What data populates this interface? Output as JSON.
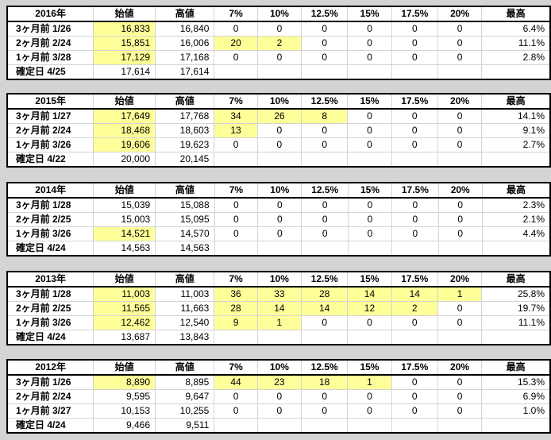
{
  "headers": [
    "始値",
    "高値",
    "7%",
    "10%",
    "12.5%",
    "15%",
    "17.5%",
    "20%",
    "最高"
  ],
  "highlight_color": "#ffff99",
  "blocks": [
    {
      "year": "2016年",
      "rows": [
        {
          "label": "3ヶ月前 1/26",
          "open": "16,833",
          "high": "16,840",
          "p": [
            "0",
            "0",
            "0",
            "0",
            "0",
            "0"
          ],
          "max": "6.4%",
          "hl": [
            1,
            0,
            0,
            0,
            0,
            0,
            0,
            0
          ]
        },
        {
          "label": "2ヶ月前 2/24",
          "open": "15,851",
          "high": "16,006",
          "p": [
            "20",
            "2",
            "0",
            "0",
            "0",
            "0"
          ],
          "max": "11.1%",
          "hl": [
            1,
            0,
            1,
            1,
            0,
            0,
            0,
            0
          ]
        },
        {
          "label": "1ヶ月前 3/28",
          "open": "17,129",
          "high": "17,168",
          "p": [
            "0",
            "0",
            "0",
            "0",
            "0",
            "0"
          ],
          "max": "2.8%",
          "hl": [
            1,
            0,
            0,
            0,
            0,
            0,
            0,
            0
          ]
        },
        {
          "label": "確定日 4/25",
          "open": "17,614",
          "high": "17,614",
          "p": [
            "",
            "",
            "",
            "",
            "",
            ""
          ],
          "max": "",
          "hl": [
            0,
            0,
            0,
            0,
            0,
            0,
            0,
            0
          ]
        }
      ]
    },
    {
      "year": "2015年",
      "rows": [
        {
          "label": "3ヶ月前 1/27",
          "open": "17,649",
          "high": "17,768",
          "p": [
            "34",
            "26",
            "8",
            "0",
            "0",
            "0"
          ],
          "max": "14.1%",
          "hl": [
            1,
            0,
            1,
            1,
            1,
            0,
            0,
            0
          ]
        },
        {
          "label": "2ヶ月前 2/24",
          "open": "18,468",
          "high": "18,603",
          "p": [
            "13",
            "0",
            "0",
            "0",
            "0",
            "0"
          ],
          "max": "9.1%",
          "hl": [
            1,
            0,
            1,
            0,
            0,
            0,
            0,
            0
          ]
        },
        {
          "label": "1ヶ月前 3/26",
          "open": "19,606",
          "high": "19,623",
          "p": [
            "0",
            "0",
            "0",
            "0",
            "0",
            "0"
          ],
          "max": "2.7%",
          "hl": [
            1,
            0,
            0,
            0,
            0,
            0,
            0,
            0
          ]
        },
        {
          "label": "確定日 4/22",
          "open": "20,000",
          "high": "20,145",
          "p": [
            "",
            "",
            "",
            "",
            "",
            ""
          ],
          "max": "",
          "hl": [
            0,
            0,
            0,
            0,
            0,
            0,
            0,
            0
          ]
        }
      ]
    },
    {
      "year": "2014年",
      "rows": [
        {
          "label": "3ヶ月前 1/28",
          "open": "15,039",
          "high": "15,088",
          "p": [
            "0",
            "0",
            "0",
            "0",
            "0",
            "0"
          ],
          "max": "2.3%",
          "hl": [
            0,
            0,
            0,
            0,
            0,
            0,
            0,
            0
          ]
        },
        {
          "label": "2ヶ月前 2/25",
          "open": "15,003",
          "high": "15,095",
          "p": [
            "0",
            "0",
            "0",
            "0",
            "0",
            "0"
          ],
          "max": "2.1%",
          "hl": [
            0,
            0,
            0,
            0,
            0,
            0,
            0,
            0
          ]
        },
        {
          "label": "1ヶ月前 3/26",
          "open": "14,521",
          "high": "14,570",
          "p": [
            "0",
            "0",
            "0",
            "0",
            "0",
            "0"
          ],
          "max": "4.4%",
          "hl": [
            1,
            0,
            0,
            0,
            0,
            0,
            0,
            0
          ]
        },
        {
          "label": "確定日 4/24",
          "open": "14,563",
          "high": "14,563",
          "p": [
            "",
            "",
            "",
            "",
            "",
            ""
          ],
          "max": "",
          "hl": [
            0,
            0,
            0,
            0,
            0,
            0,
            0,
            0
          ]
        }
      ]
    },
    {
      "year": "2013年",
      "rows": [
        {
          "label": "3ヶ月前 1/28",
          "open": "11,003",
          "high": "11,003",
          "p": [
            "36",
            "33",
            "28",
            "14",
            "14",
            "1"
          ],
          "max": "25.8%",
          "hl": [
            1,
            0,
            1,
            1,
            1,
            1,
            1,
            1
          ]
        },
        {
          "label": "2ヶ月前 2/25",
          "open": "11,565",
          "high": "11,663",
          "p": [
            "28",
            "14",
            "14",
            "12",
            "2",
            "0"
          ],
          "max": "19.7%",
          "hl": [
            1,
            0,
            1,
            1,
            1,
            1,
            1,
            0
          ]
        },
        {
          "label": "1ヶ月前 3/26",
          "open": "12,462",
          "high": "12,540",
          "p": [
            "9",
            "1",
            "0",
            "0",
            "0",
            "0"
          ],
          "max": "11.1%",
          "hl": [
            1,
            0,
            1,
            1,
            0,
            0,
            0,
            0
          ]
        },
        {
          "label": "確定日 4/24",
          "open": "13,687",
          "high": "13,843",
          "p": [
            "",
            "",
            "",
            "",
            "",
            ""
          ],
          "max": "",
          "hl": [
            0,
            0,
            0,
            0,
            0,
            0,
            0,
            0
          ]
        }
      ]
    },
    {
      "year": "2012年",
      "rows": [
        {
          "label": "3ヶ月前 1/26",
          "open": "8,890",
          "high": "8,895",
          "p": [
            "44",
            "23",
            "18",
            "1",
            "0",
            "0"
          ],
          "max": "15.3%",
          "hl": [
            1,
            0,
            1,
            1,
            1,
            1,
            0,
            0
          ]
        },
        {
          "label": "2ヶ月前 2/24",
          "open": "9,595",
          "high": "9,647",
          "p": [
            "0",
            "0",
            "0",
            "0",
            "0",
            "0"
          ],
          "max": "6.9%",
          "hl": [
            0,
            0,
            0,
            0,
            0,
            0,
            0,
            0
          ]
        },
        {
          "label": "1ヶ月前 3/27",
          "open": "10,153",
          "high": "10,255",
          "p": [
            "0",
            "0",
            "0",
            "0",
            "0",
            "0"
          ],
          "max": "1.0%",
          "hl": [
            0,
            0,
            0,
            0,
            0,
            0,
            0,
            0
          ]
        },
        {
          "label": "確定日 4/24",
          "open": "9,466",
          "high": "9,511",
          "p": [
            "",
            "",
            "",
            "",
            "",
            ""
          ],
          "max": "",
          "hl": [
            0,
            0,
            0,
            0,
            0,
            0,
            0,
            0
          ]
        }
      ]
    }
  ]
}
